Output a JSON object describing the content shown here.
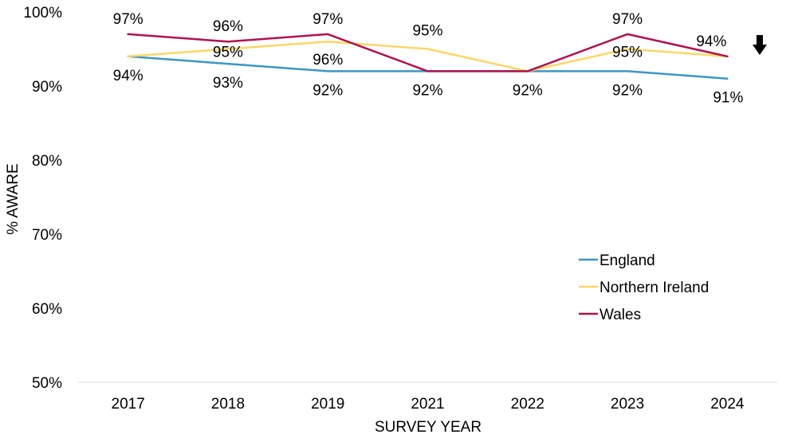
{
  "chart_data": {
    "type": "line",
    "title": "",
    "xlabel": "SURVEY YEAR",
    "ylabel": "% AWARE",
    "categories": [
      "2017",
      "2018",
      "2019",
      "2021",
      "2022",
      "2023",
      "2024"
    ],
    "ylim": [
      50,
      100
    ],
    "yticks": [
      "50%",
      "60%",
      "70%",
      "80%",
      "90%",
      "100%"
    ],
    "grid": false,
    "legend_position": "right",
    "series": [
      {
        "name": "England",
        "color": "#3B96C3",
        "values": [
          94,
          93,
          92,
          92,
          92,
          92,
          91
        ],
        "labels": [
          "94%",
          "93%",
          "92%",
          "92%",
          "92%",
          "92%",
          "91%"
        ]
      },
      {
        "name": "Northern Ireland",
        "color": "#FBD767",
        "values": [
          94,
          95,
          96,
          95,
          92,
          95,
          94
        ],
        "labels": [
          "",
          "95%",
          "96%",
          "95%",
          "",
          "95%",
          ""
        ]
      },
      {
        "name": "Wales",
        "color": "#B0124F",
        "values": [
          97,
          96,
          97,
          92,
          92,
          97,
          94
        ],
        "labels": [
          "97%",
          "96%",
          "97%",
          "",
          "",
          "97%",
          "94%"
        ]
      }
    ],
    "annotations": [
      {
        "type": "arrow",
        "direction": "down",
        "icon": "down-arrow-icon",
        "series": "Wales",
        "category": "2024"
      }
    ]
  }
}
